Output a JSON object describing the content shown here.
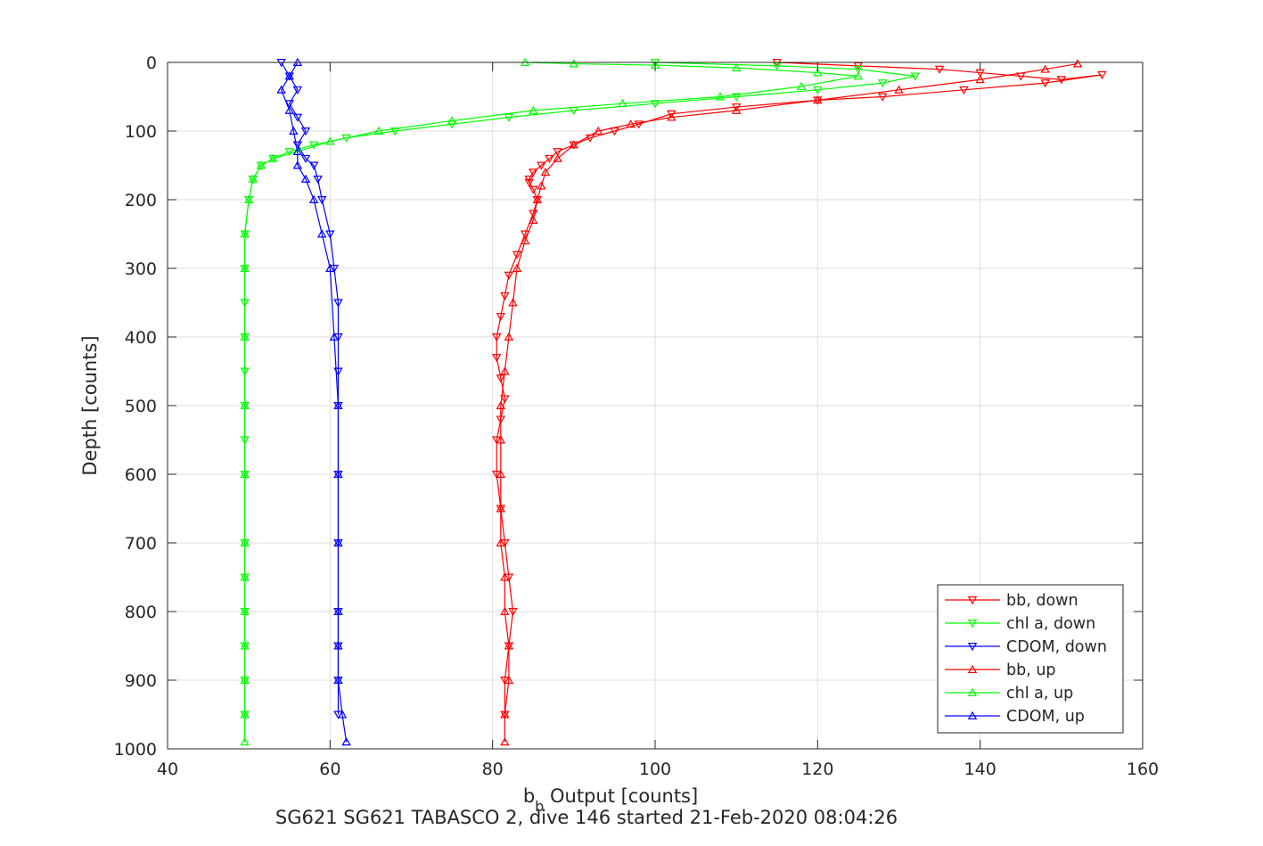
{
  "chart_data": {
    "type": "scatter",
    "title": "SG621 SG621 TABASCO 2, dive 146 started 21-Feb-2020 08:04:26",
    "xlabel": {
      "base": "b",
      "subscript": "b",
      "rest": " Output [counts]"
    },
    "ylabel": "Depth [counts]",
    "xlim": [
      40,
      160
    ],
    "ylim": [
      0,
      1000
    ],
    "y_reversed": true,
    "grid": true,
    "x_ticks": [
      40,
      60,
      80,
      100,
      120,
      140,
      160
    ],
    "y_ticks": [
      0,
      100,
      200,
      300,
      400,
      500,
      600,
      700,
      800,
      900,
      1000
    ],
    "legend": {
      "location": "bottom-right"
    },
    "series": [
      {
        "name": "bb, down",
        "color": "#ff0000",
        "marker": "triangle-down",
        "line": true,
        "x": [
          115,
          125,
          135,
          140,
          145,
          150,
          155,
          148,
          138,
          128,
          120,
          110,
          102,
          98,
          95,
          92,
          90,
          88,
          87,
          86,
          85,
          84.5,
          84.5,
          85,
          85.5,
          85,
          84,
          83,
          82,
          81.5,
          81,
          80.5,
          80.5,
          81,
          81.5,
          81,
          80.5,
          80.5,
          81,
          81.5,
          82,
          82.5,
          82,
          81.5,
          81.5
        ],
        "y": [
          0,
          5,
          10,
          15,
          20,
          25,
          18,
          30,
          40,
          50,
          55,
          65,
          75,
          90,
          100,
          110,
          120,
          130,
          140,
          150,
          160,
          170,
          175,
          185,
          200,
          220,
          250,
          280,
          310,
          340,
          370,
          400,
          430,
          460,
          490,
          520,
          550,
          600,
          650,
          700,
          750,
          800,
          850,
          900,
          950
        ]
      },
      {
        "name": "chl a, down",
        "color": "#00ff00",
        "marker": "triangle-down",
        "line": true,
        "x": [
          100,
          115,
          125,
          132,
          128,
          120,
          110,
          100,
          90,
          82,
          75,
          68,
          62,
          58,
          55,
          53,
          51.5,
          50.5,
          50,
          49.5,
          49.5,
          49.5,
          49.5,
          49.5,
          49.5,
          49.5,
          49.5,
          49.5,
          49.5,
          49.5,
          49.5,
          49.5,
          49.5
        ],
        "y": [
          0,
          5,
          10,
          20,
          30,
          40,
          50,
          60,
          70,
          80,
          90,
          100,
          110,
          120,
          130,
          140,
          150,
          170,
          200,
          250,
          300,
          350,
          400,
          450,
          500,
          550,
          600,
          700,
          750,
          800,
          850,
          900,
          950
        ]
      },
      {
        "name": "CDOM, down",
        "color": "#0000ff",
        "marker": "triangle-down",
        "line": true,
        "x": [
          54,
          55,
          56,
          55,
          56,
          57,
          56,
          57,
          58,
          58.5,
          59,
          60,
          60.5,
          61,
          61,
          61,
          61,
          61,
          61,
          61,
          61,
          61,
          61
        ],
        "y": [
          0,
          20,
          40,
          60,
          80,
          100,
          120,
          140,
          150,
          170,
          200,
          250,
          300,
          350,
          400,
          450,
          500,
          600,
          700,
          800,
          850,
          900,
          950
        ]
      },
      {
        "name": "bb, up",
        "color": "#ff0000",
        "marker": "triangle-up",
        "line": true,
        "x": [
          81.5,
          81.5,
          82,
          82,
          81.5,
          81.5,
          81,
          81,
          81,
          81,
          81,
          81.5,
          82,
          82.5,
          83,
          84,
          85,
          85.5,
          86,
          86.5,
          88,
          90,
          93,
          97,
          102,
          110,
          120,
          130,
          140,
          148,
          152
        ],
        "y": [
          990,
          950,
          900,
          850,
          800,
          750,
          700,
          650,
          600,
          550,
          500,
          450,
          400,
          350,
          300,
          260,
          230,
          200,
          180,
          160,
          140,
          120,
          100,
          90,
          80,
          70,
          55,
          40,
          25,
          10,
          2
        ]
      },
      {
        "name": "chl a, up",
        "color": "#00ff00",
        "marker": "triangle-up",
        "line": true,
        "x": [
          49.5,
          49.5,
          49.5,
          49.5,
          49.5,
          49.5,
          49.5,
          49.5,
          49.5,
          49.5,
          49.5,
          49.5,
          50,
          50.5,
          51.5,
          53,
          56,
          60,
          66,
          75,
          85,
          96,
          108,
          118,
          125,
          120,
          110,
          100,
          90,
          84
        ],
        "y": [
          990,
          950,
          900,
          850,
          800,
          750,
          700,
          600,
          500,
          400,
          300,
          250,
          200,
          170,
          150,
          140,
          130,
          115,
          100,
          85,
          70,
          60,
          50,
          35,
          20,
          15,
          8,
          4,
          2,
          0
        ]
      },
      {
        "name": "CDOM, up",
        "color": "#0000ff",
        "marker": "triangle-up",
        "line": true,
        "x": [
          62,
          61.5,
          61,
          61,
          61,
          61,
          61,
          61,
          60.5,
          60,
          59,
          58,
          57,
          56,
          56,
          55.5,
          55,
          54,
          55,
          56
        ],
        "y": [
          990,
          950,
          900,
          850,
          800,
          700,
          600,
          500,
          400,
          300,
          250,
          200,
          170,
          150,
          130,
          100,
          70,
          40,
          20,
          0
        ]
      }
    ]
  }
}
